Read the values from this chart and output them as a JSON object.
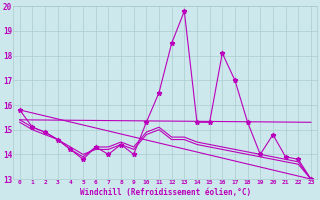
{
  "background_color": "#cce8ec",
  "line_color": "#bb00bb",
  "grid_color": "#aacccc",
  "xlabel": "Windchill (Refroidissement éolien,°C)",
  "xlim": [
    -0.5,
    23.5
  ],
  "ylim": [
    13,
    20
  ],
  "yticks": [
    13,
    14,
    15,
    16,
    17,
    18,
    19,
    20
  ],
  "xticks": [
    0,
    1,
    2,
    3,
    4,
    5,
    6,
    7,
    8,
    9,
    10,
    11,
    12,
    13,
    14,
    15,
    16,
    17,
    18,
    19,
    20,
    21,
    22,
    23
  ],
  "series_main": {
    "x": [
      0,
      1,
      2,
      3,
      4,
      5,
      6,
      7,
      8,
      9,
      10,
      11,
      12,
      13,
      14,
      15,
      16,
      17,
      18,
      19,
      20,
      21,
      22,
      23
    ],
    "y": [
      15.8,
      15.1,
      14.9,
      14.6,
      14.2,
      13.8,
      14.3,
      14.0,
      14.4,
      14.0,
      15.3,
      16.5,
      18.5,
      19.8,
      15.3,
      15.3,
      18.1,
      17.0,
      15.3,
      14.0,
      14.8,
      13.9,
      13.8,
      13.0
    ]
  },
  "series_flat": {
    "x": [
      0,
      23
    ],
    "y": [
      15.4,
      15.3
    ]
  },
  "series_decline": {
    "x": [
      0,
      23
    ],
    "y": [
      15.8,
      13.0
    ]
  },
  "series_extra1": {
    "x": [
      0,
      1,
      2,
      3,
      4,
      5,
      6,
      7,
      8,
      9,
      10,
      11,
      12,
      13,
      14,
      15,
      16,
      17,
      18,
      19,
      20,
      21,
      22,
      23
    ],
    "y": [
      15.4,
      15.1,
      14.9,
      14.6,
      14.3,
      14.0,
      14.2,
      14.2,
      14.4,
      14.2,
      14.8,
      15.0,
      14.6,
      14.6,
      14.4,
      14.3,
      14.2,
      14.1,
      14.0,
      13.9,
      13.8,
      13.7,
      13.6,
      13.0
    ]
  },
  "series_extra2": {
    "x": [
      0,
      1,
      2,
      3,
      4,
      5,
      6,
      7,
      8,
      9,
      10,
      11,
      12,
      13,
      14,
      15,
      16,
      17,
      18,
      19,
      20,
      21,
      22,
      23
    ],
    "y": [
      15.3,
      15.0,
      14.8,
      14.6,
      14.2,
      13.9,
      14.3,
      14.3,
      14.5,
      14.3,
      14.9,
      15.1,
      14.7,
      14.7,
      14.5,
      14.4,
      14.3,
      14.2,
      14.1,
      14.0,
      13.9,
      13.8,
      13.7,
      13.0
    ]
  }
}
